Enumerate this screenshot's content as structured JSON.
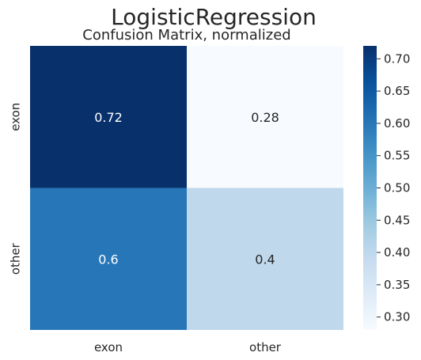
{
  "figure": {
    "suptitle": "LogisticRegression"
  },
  "chart_data": {
    "type": "heatmap",
    "title": "Confusion Matrix, normalized",
    "xlabel": "",
    "ylabel": "",
    "x_categories": [
      "exon",
      "other"
    ],
    "y_categories": [
      "exon",
      "other"
    ],
    "values": [
      [
        0.72,
        0.28
      ],
      [
        0.6,
        0.4
      ]
    ],
    "cell_labels": [
      [
        "0.72",
        "0.28"
      ],
      [
        "0.6",
        "0.4"
      ]
    ],
    "colormap": "Blues",
    "colorbar": {
      "vmin": 0.28,
      "vmax": 0.72,
      "ticks": [
        0.3,
        0.35,
        0.4,
        0.45,
        0.5,
        0.55,
        0.6,
        0.65,
        0.7
      ],
      "tick_labels": [
        "0.30",
        "0.35",
        "0.40",
        "0.45",
        "0.50",
        "0.55",
        "0.60",
        "0.65",
        "0.70"
      ]
    },
    "grid": false,
    "colors": {
      "text_dark_cell": "#ffffff",
      "text_light_cell": "#262626",
      "axis_text": "#262626"
    }
  }
}
